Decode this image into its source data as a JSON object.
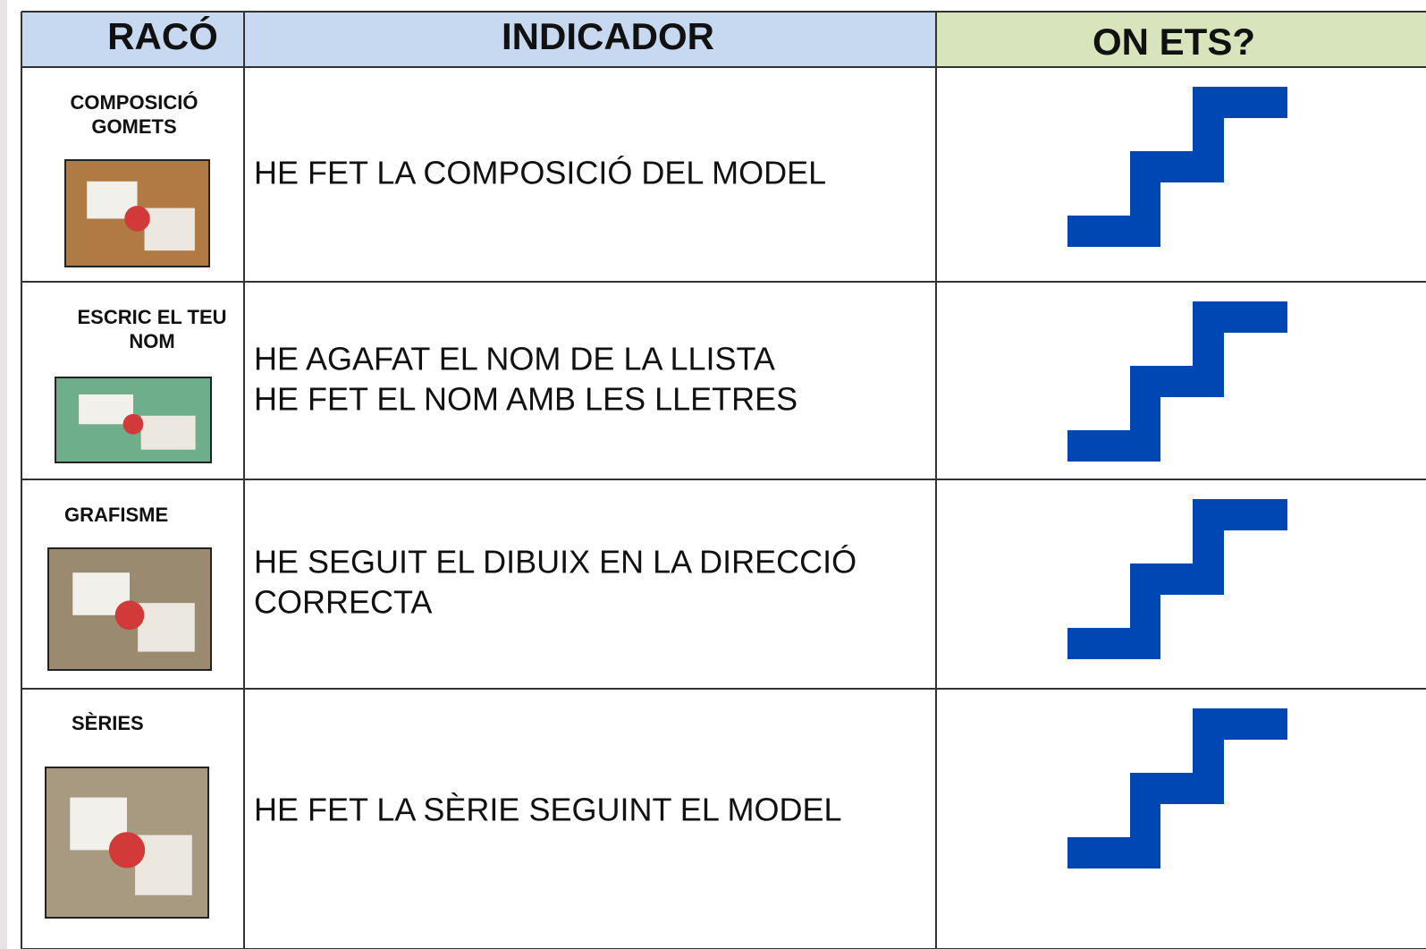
{
  "table": {
    "header": [
      "RACÓ",
      "INDICADOR",
      "ON ETS?"
    ],
    "rows": [
      {
        "raco": [
          "COMPOSICIÓ",
          "GOMETS"
        ],
        "indicador": [
          "HE FET LA COMPOSICIÓ DEL MODEL"
        ]
      },
      {
        "raco": [
          "ESCRIC EL TEU",
          "NOM"
        ],
        "indicador": [
          "HE AGAFAT EL NOM DE LA LLISTA",
          "HE FET EL NOM AMB LES LLETRES"
        ]
      },
      {
        "raco": [
          "GRAFISME"
        ],
        "indicador": [
          "HE SEGUIT EL DIBUIX EN LA DIRECCIÓ",
          "CORRECTA"
        ]
      },
      {
        "raco": [
          "SÈRIES"
        ],
        "indicador": [
          "HE FET LA SÈRIE SEGUINT EL MODEL"
        ]
      }
    ]
  }
}
